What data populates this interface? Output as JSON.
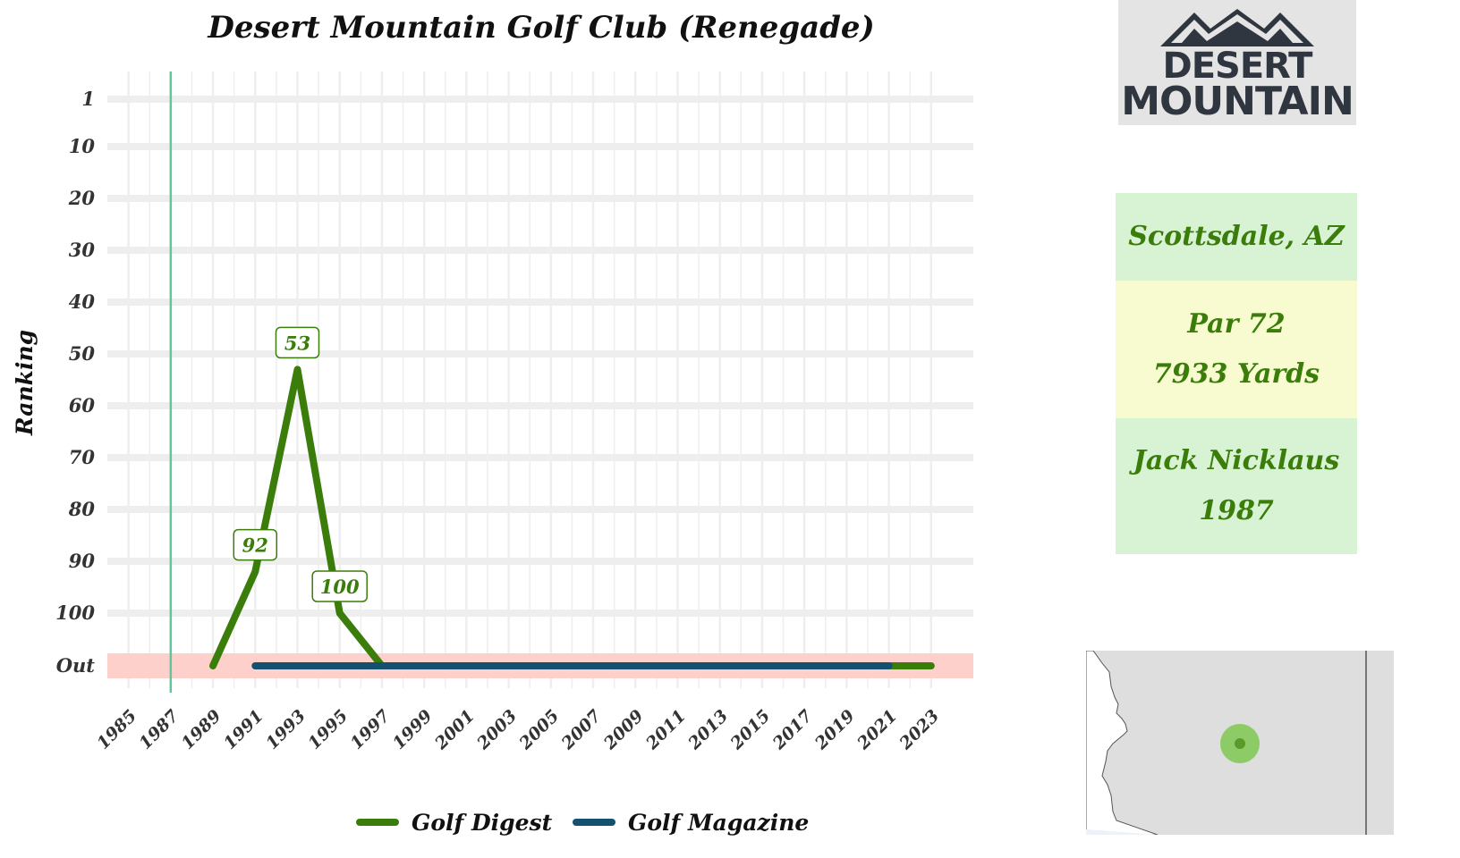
{
  "chart_data": {
    "type": "line",
    "title": "Desert Mountain Golf Club (Renegade)",
    "ylabel": "Ranking",
    "xlabel": "",
    "x_ticks": [
      "1985",
      "1987",
      "1989",
      "1991",
      "1993",
      "1995",
      "1997",
      "1999",
      "2001",
      "2003",
      "2005",
      "2007",
      "2009",
      "2011",
      "2013",
      "2015",
      "2017",
      "2019",
      "2021",
      "2023"
    ],
    "y_ticks": [
      "1",
      "10",
      "20",
      "30",
      "40",
      "50",
      "60",
      "70",
      "80",
      "90",
      "100",
      "Out"
    ],
    "xlim": [
      1984,
      2025
    ],
    "opened_year": 1987,
    "out_band_label": "Out",
    "grid": true,
    "legend_position": "bottom",
    "series": [
      {
        "name": "Golf Digest",
        "color": "#3a7d0a",
        "points": [
          {
            "x": 1989,
            "y": "Out"
          },
          {
            "x": 1991,
            "y": 92,
            "label": "92"
          },
          {
            "x": 1993,
            "y": 53,
            "label": "53"
          },
          {
            "x": 1995,
            "y": 100,
            "label": "100"
          },
          {
            "x": 1997,
            "y": "Out"
          },
          {
            "x": 2023,
            "y": "Out"
          }
        ]
      },
      {
        "name": "Golf Magazine",
        "color": "#15506e",
        "points": [
          {
            "x": 1991,
            "y": "Out"
          },
          {
            "x": 2021,
            "y": "Out"
          }
        ]
      }
    ]
  },
  "logo": {
    "line1": "DESERT",
    "line2": "MOUNTAIN"
  },
  "info": {
    "location": "Scottsdale, AZ",
    "par": "Par 72",
    "yards": "7933 Yards",
    "architect": "Jack Nicklaus",
    "year": "1987"
  },
  "colors": {
    "out_band": "#fdd0cb",
    "opened_line": "#5fc79a",
    "grid": "#eeeeee",
    "info_green_bg": "#d8f2d4",
    "info_yellow_bg": "#f7fbcf",
    "map_bg": "#dedede",
    "map_marker": "#7ec850"
  },
  "map": {
    "marker_icon": "location-dot-icon"
  }
}
